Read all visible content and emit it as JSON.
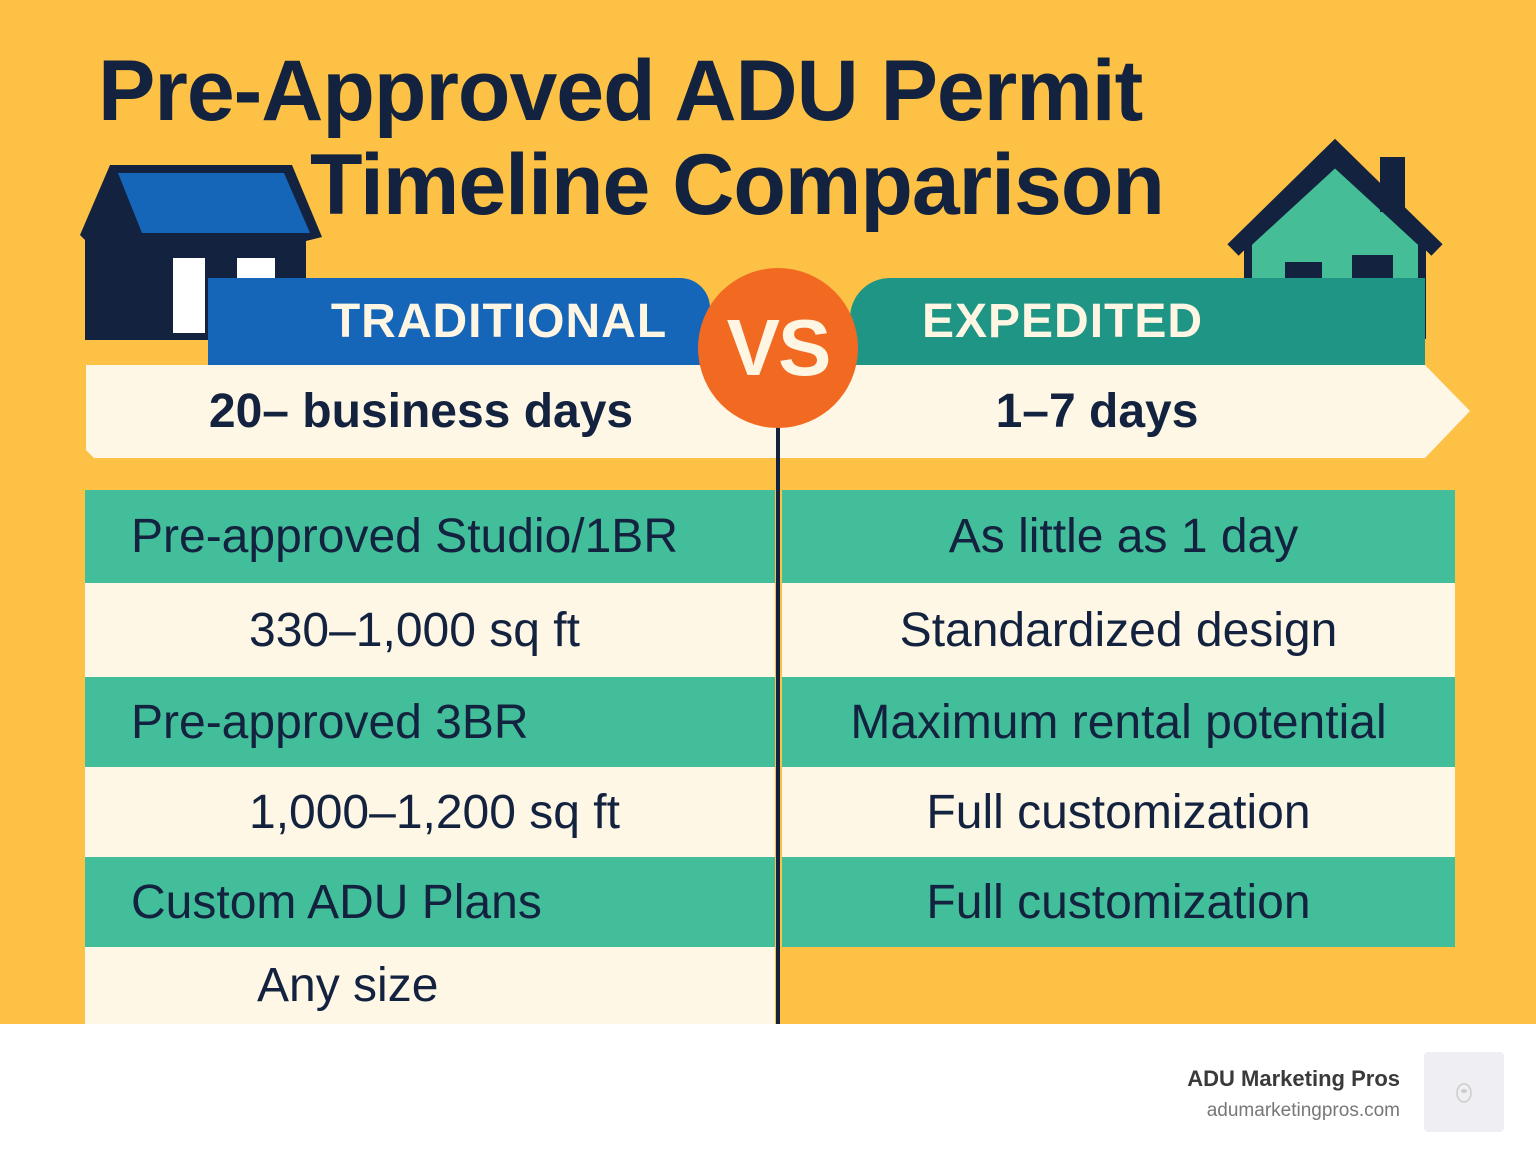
{
  "title": {
    "line1": "Pre-Approved ADU Permit",
    "line2": "Timeline Comparison"
  },
  "header": {
    "left_label": "TRADITIONAL",
    "right_label": "EXPEDITED",
    "vs_label": "VS",
    "left_timeline": "20– business days",
    "right_timeline": "1–7 days"
  },
  "rows": [
    {
      "left": "Pre-approved Studio/1BR",
      "right": "As little as 1 day"
    },
    {
      "left": "330–1,000 sq ft",
      "right": "Standardized design"
    },
    {
      "left": "Pre-approved 3BR",
      "right": "Maximum rental potential"
    },
    {
      "left": "1,000–1,200 sq ft",
      "right": "Full customization"
    },
    {
      "left": "Custom ADU Plans",
      "right": "Full customization"
    },
    {
      "left": "Any size",
      "right": ""
    }
  ],
  "footer": {
    "brand": "ADU Marketing Pros",
    "url": "adumarketingpros.com"
  },
  "colors": {
    "background": "#FDC145",
    "navy": "#13233F",
    "traditional_blue": "#1565B8",
    "expedited_teal": "#1E9585",
    "row_green": "#43BE9A",
    "row_cream": "#FEF7E6",
    "vs_orange": "#F26A21"
  }
}
